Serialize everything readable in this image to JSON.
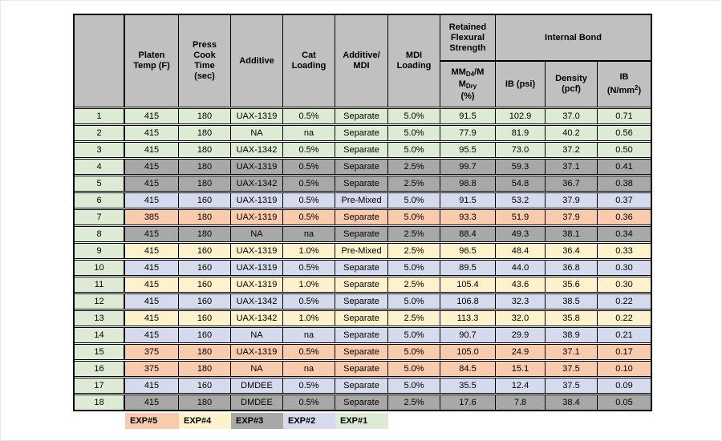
{
  "colors": {
    "header_gray": "#C0C0C0",
    "exp1": "#DEEBD4",
    "exp2": "#D6DAED",
    "exp3": "#A8A8A8",
    "exp4": "#FEF2CC",
    "exp5": "#F8CBAD",
    "border": "#000000",
    "page_background": "#FFFFFF"
  },
  "table": {
    "headers": {
      "corner": "",
      "platen": "Platen Temp (F)",
      "press": "Press Cook Time (sec)",
      "additive": "Additive",
      "cat": "Cat Loading",
      "mix": "Additive/ MDI",
      "mdi": "MDI Loading",
      "retained": "Retained Flexural Strength",
      "internal_bond": "Internal Bond",
      "mm": {
        "l1a": "MM",
        "l1sub": "D4",
        "l1b": "/M",
        "l2a": "M",
        "l2sub": "Dry",
        "l3": "(%)"
      },
      "ib_psi": "IB (psi)",
      "density": "Density (pcf)",
      "ib_nmm": {
        "l1": "IB",
        "l2a": "(N/mm",
        "sup": "2",
        "l2b": ")"
      }
    },
    "rows": [
      {
        "num": "1",
        "platen": "415",
        "press": "180",
        "additive": "UAX-1319",
        "cat": "0.5%",
        "mix": "Separate",
        "mdi": "5.0%",
        "mm": "91.5",
        "ib_psi": "102.9",
        "density": "37.0",
        "ib_nmm": "0.71",
        "exp": "exp1"
      },
      {
        "num": "2",
        "platen": "415",
        "press": "180",
        "additive": "NA",
        "cat": "na",
        "mix": "Separate",
        "mdi": "5.0%",
        "mm": "77.9",
        "ib_psi": "81.9",
        "density": "40.2",
        "ib_nmm": "0.56",
        "exp": "exp1"
      },
      {
        "num": "3",
        "platen": "415",
        "press": "180",
        "additive": "UAX-1342",
        "cat": "0.5%",
        "mix": "Separate",
        "mdi": "5.0%",
        "mm": "95.5",
        "ib_psi": "73.0",
        "density": "37.2",
        "ib_nmm": "0.50",
        "exp": "exp1"
      },
      {
        "num": "4",
        "platen": "415",
        "press": "180",
        "additive": "UAX-1319",
        "cat": "0.5%",
        "mix": "Separate",
        "mdi": "2.5%",
        "mm": "99.7",
        "ib_psi": "59.3",
        "density": "37.1",
        "ib_nmm": "0.41",
        "exp": "exp3"
      },
      {
        "num": "5",
        "platen": "415",
        "press": "180",
        "additive": "UAX-1342",
        "cat": "0.5%",
        "mix": "Separate",
        "mdi": "2.5%",
        "mm": "98.8",
        "ib_psi": "54.8",
        "density": "36.7",
        "ib_nmm": "0.38",
        "exp": "exp3"
      },
      {
        "num": "6",
        "platen": "415",
        "press": "160",
        "additive": "UAX-1319",
        "cat": "0.5%",
        "mix": "Pre-Mixed",
        "mdi": "5.0%",
        "mm": "91.5",
        "ib_psi": "53.2",
        "density": "37.9",
        "ib_nmm": "0.37",
        "exp": "exp2"
      },
      {
        "num": "7",
        "platen": "385",
        "press": "180",
        "additive": "UAX-1319",
        "cat": "0.5%",
        "mix": "Separate",
        "mdi": "5.0%",
        "mm": "93.3",
        "ib_psi": "51.9",
        "density": "37.9",
        "ib_nmm": "0.36",
        "exp": "exp5"
      },
      {
        "num": "8",
        "platen": "415",
        "press": "180",
        "additive": "NA",
        "cat": "na",
        "mix": "Separate",
        "mdi": "2.5%",
        "mm": "88.4",
        "ib_psi": "49.3",
        "density": "38.1",
        "ib_nmm": "0.34",
        "exp": "exp3"
      },
      {
        "num": "9",
        "platen": "415",
        "press": "160",
        "additive": "UAX-1319",
        "cat": "1.0%",
        "mix": "Pre-Mixed",
        "mdi": "2.5%",
        "mm": "96.5",
        "ib_psi": "48.4",
        "density": "36.4",
        "ib_nmm": "0.33",
        "exp": "exp4"
      },
      {
        "num": "10",
        "platen": "415",
        "press": "160",
        "additive": "UAX-1319",
        "cat": "0.5%",
        "mix": "Separate",
        "mdi": "5.0%",
        "mm": "89.5",
        "ib_psi": "44.0",
        "density": "36.8",
        "ib_nmm": "0.30",
        "exp": "exp2"
      },
      {
        "num": "11",
        "platen": "415",
        "press": "160",
        "additive": "UAX-1319",
        "cat": "1.0%",
        "mix": "Separate",
        "mdi": "2.5%",
        "mm": "105.4",
        "ib_psi": "43.6",
        "density": "35.6",
        "ib_nmm": "0.30",
        "exp": "exp4"
      },
      {
        "num": "12",
        "platen": "415",
        "press": "160",
        "additive": "UAX-1342",
        "cat": "0.5%",
        "mix": "Separate",
        "mdi": "5.0%",
        "mm": "106.8",
        "ib_psi": "32.3",
        "density": "38.5",
        "ib_nmm": "0.22",
        "exp": "exp2"
      },
      {
        "num": "13",
        "platen": "415",
        "press": "160",
        "additive": "UAX-1342",
        "cat": "1.0%",
        "mix": "Separate",
        "mdi": "2.5%",
        "mm": "113.3",
        "ib_psi": "32.0",
        "density": "35.8",
        "ib_nmm": "0.22",
        "exp": "exp4"
      },
      {
        "num": "14",
        "platen": "415",
        "press": "160",
        "additive": "NA",
        "cat": "na",
        "mix": "Separate",
        "mdi": "5.0%",
        "mm": "90.7",
        "ib_psi": "29.9",
        "density": "38.9",
        "ib_nmm": "0.21",
        "exp": "exp2"
      },
      {
        "num": "15",
        "platen": "375",
        "press": "180",
        "additive": "UAX-1319",
        "cat": "0.5%",
        "mix": "Separate",
        "mdi": "5.0%",
        "mm": "105.0",
        "ib_psi": "24.9",
        "density": "37.1",
        "ib_nmm": "0.17",
        "exp": "exp5"
      },
      {
        "num": "16",
        "platen": "375",
        "press": "180",
        "additive": "NA",
        "cat": "na",
        "mix": "Separate",
        "mdi": "5.0%",
        "mm": "84.5",
        "ib_psi": "15.1",
        "density": "37.5",
        "ib_nmm": "0.10",
        "exp": "exp5"
      },
      {
        "num": "17",
        "platen": "415",
        "press": "160",
        "additive": "DMDEE",
        "cat": "0.5%",
        "mix": "Separate",
        "mdi": "5.0%",
        "mm": "35.5",
        "ib_psi": "12.4",
        "density": "37.5",
        "ib_nmm": "0.09",
        "exp": "exp2"
      },
      {
        "num": "18",
        "platen": "415",
        "press": "180",
        "additive": "DMDEE",
        "cat": "0.5%",
        "mix": "Separate",
        "mdi": "2.5%",
        "mm": "17.6",
        "ib_psi": "7.8",
        "density": "38.4",
        "ib_nmm": "0.05",
        "exp": "exp3"
      }
    ],
    "legend": [
      {
        "label": "EXP#5",
        "color_key": "exp5"
      },
      {
        "label": "EXP#4",
        "color_key": "exp4"
      },
      {
        "label": "EXP#3",
        "color_key": "exp3"
      },
      {
        "label": "EXP#2",
        "color_key": "exp2"
      },
      {
        "label": "EXP#1",
        "color_key": "exp1"
      }
    ]
  }
}
